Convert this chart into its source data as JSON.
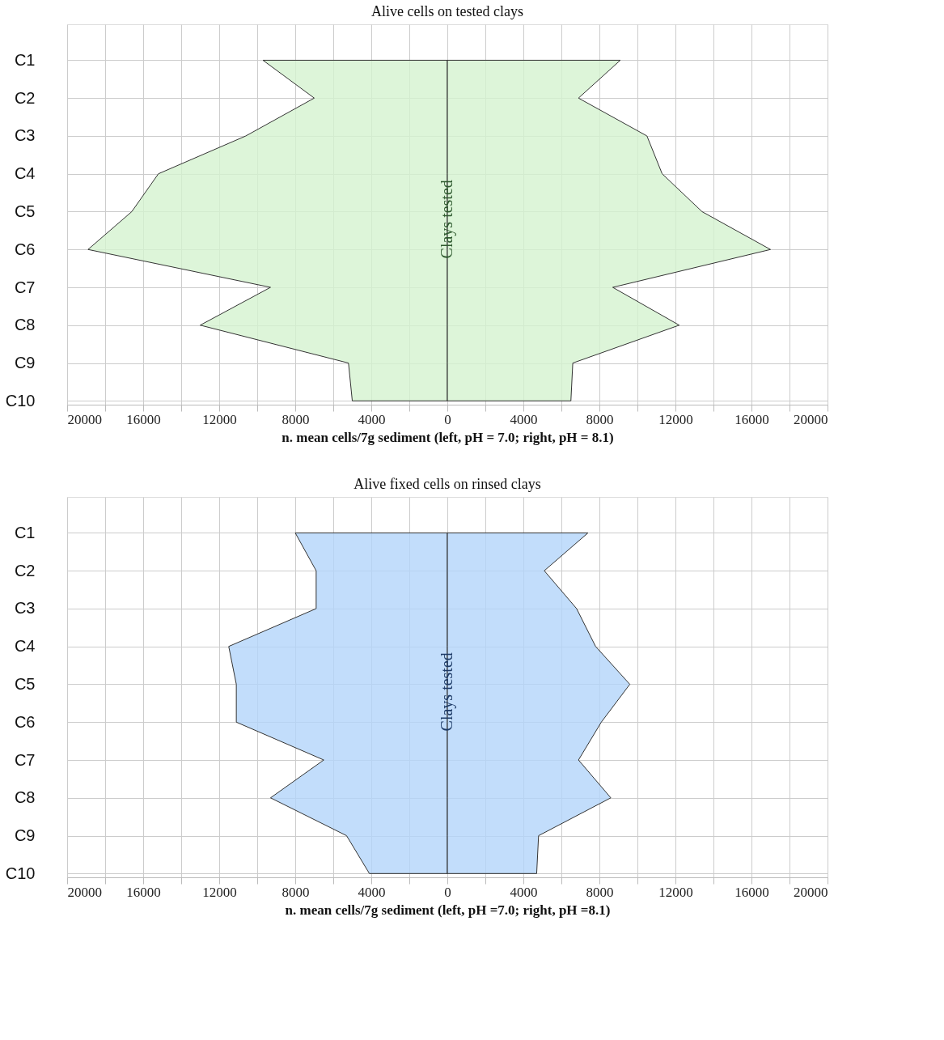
{
  "chart_data": [
    {
      "type": "area",
      "orientation": "horizontal",
      "title": "Alive cells on tested clays",
      "xlabel": "n. mean cells/7g sediment (left, pH = 7.0; right, pH = 8.1)",
      "annotations": [
        "Clays tested"
      ],
      "categories": [
        "C1",
        "C2",
        "C3",
        "C4",
        "C5",
        "C6",
        "C7",
        "C8",
        "C9",
        "C10"
      ],
      "series": [
        {
          "color": "#d4f2cf",
          "values": [
            -9700,
            -7000,
            -10600,
            -15200,
            -16600,
            -18900,
            -9300,
            -13000,
            -5200,
            -5000
          ]
        },
        {
          "color": "#d4f2cf",
          "values": [
            9100,
            6900,
            10500,
            11300,
            13400,
            17000,
            8700,
            12200,
            6600,
            6500
          ]
        }
      ],
      "xlim": [
        -20000,
        20000
      ],
      "xticks": [
        {
          "value": -20000,
          "label": "20000"
        },
        {
          "value": -16000,
          "label": "16000"
        },
        {
          "value": -12000,
          "label": "12000"
        },
        {
          "value": -8000,
          "label": "8000"
        },
        {
          "value": -4000,
          "label": "4000"
        },
        0,
        4000,
        8000,
        12000,
        16000,
        20000
      ],
      "grid": true,
      "legend": false
    },
    {
      "type": "area",
      "orientation": "horizontal",
      "title": "Alive fixed cells on rinsed clays",
      "xlabel": "n. mean cells/7g sediment (left, pH =7.0; right, pH =8.1)",
      "annotations": [
        "Clays tested"
      ],
      "categories": [
        "C1",
        "C2",
        "C3",
        "C4",
        "C5",
        "C6",
        "C7",
        "C8",
        "C9",
        "C10"
      ],
      "series": [
        {
          "color": "#b3d4fa",
          "values": [
            -8000,
            -6900,
            -6900,
            -11500,
            -11100,
            -11100,
            -6500,
            -9300,
            -5300,
            -4100
          ]
        },
        {
          "color": "#b3d4fa",
          "values": [
            7400,
            5100,
            6800,
            7800,
            9600,
            8100,
            6900,
            8600,
            4800,
            4700
          ]
        }
      ],
      "xlim": [
        -20000,
        20000
      ],
      "xticks": [
        {
          "value": -20000,
          "label": "20000"
        },
        {
          "value": -16000,
          "label": "16000"
        },
        {
          "value": -12000,
          "label": "12000"
        },
        {
          "value": -8000,
          "label": "8000"
        },
        {
          "value": -4000,
          "label": "4000"
        },
        0,
        4000,
        8000,
        12000,
        16000,
        20000
      ],
      "grid": true,
      "legend": false
    }
  ]
}
